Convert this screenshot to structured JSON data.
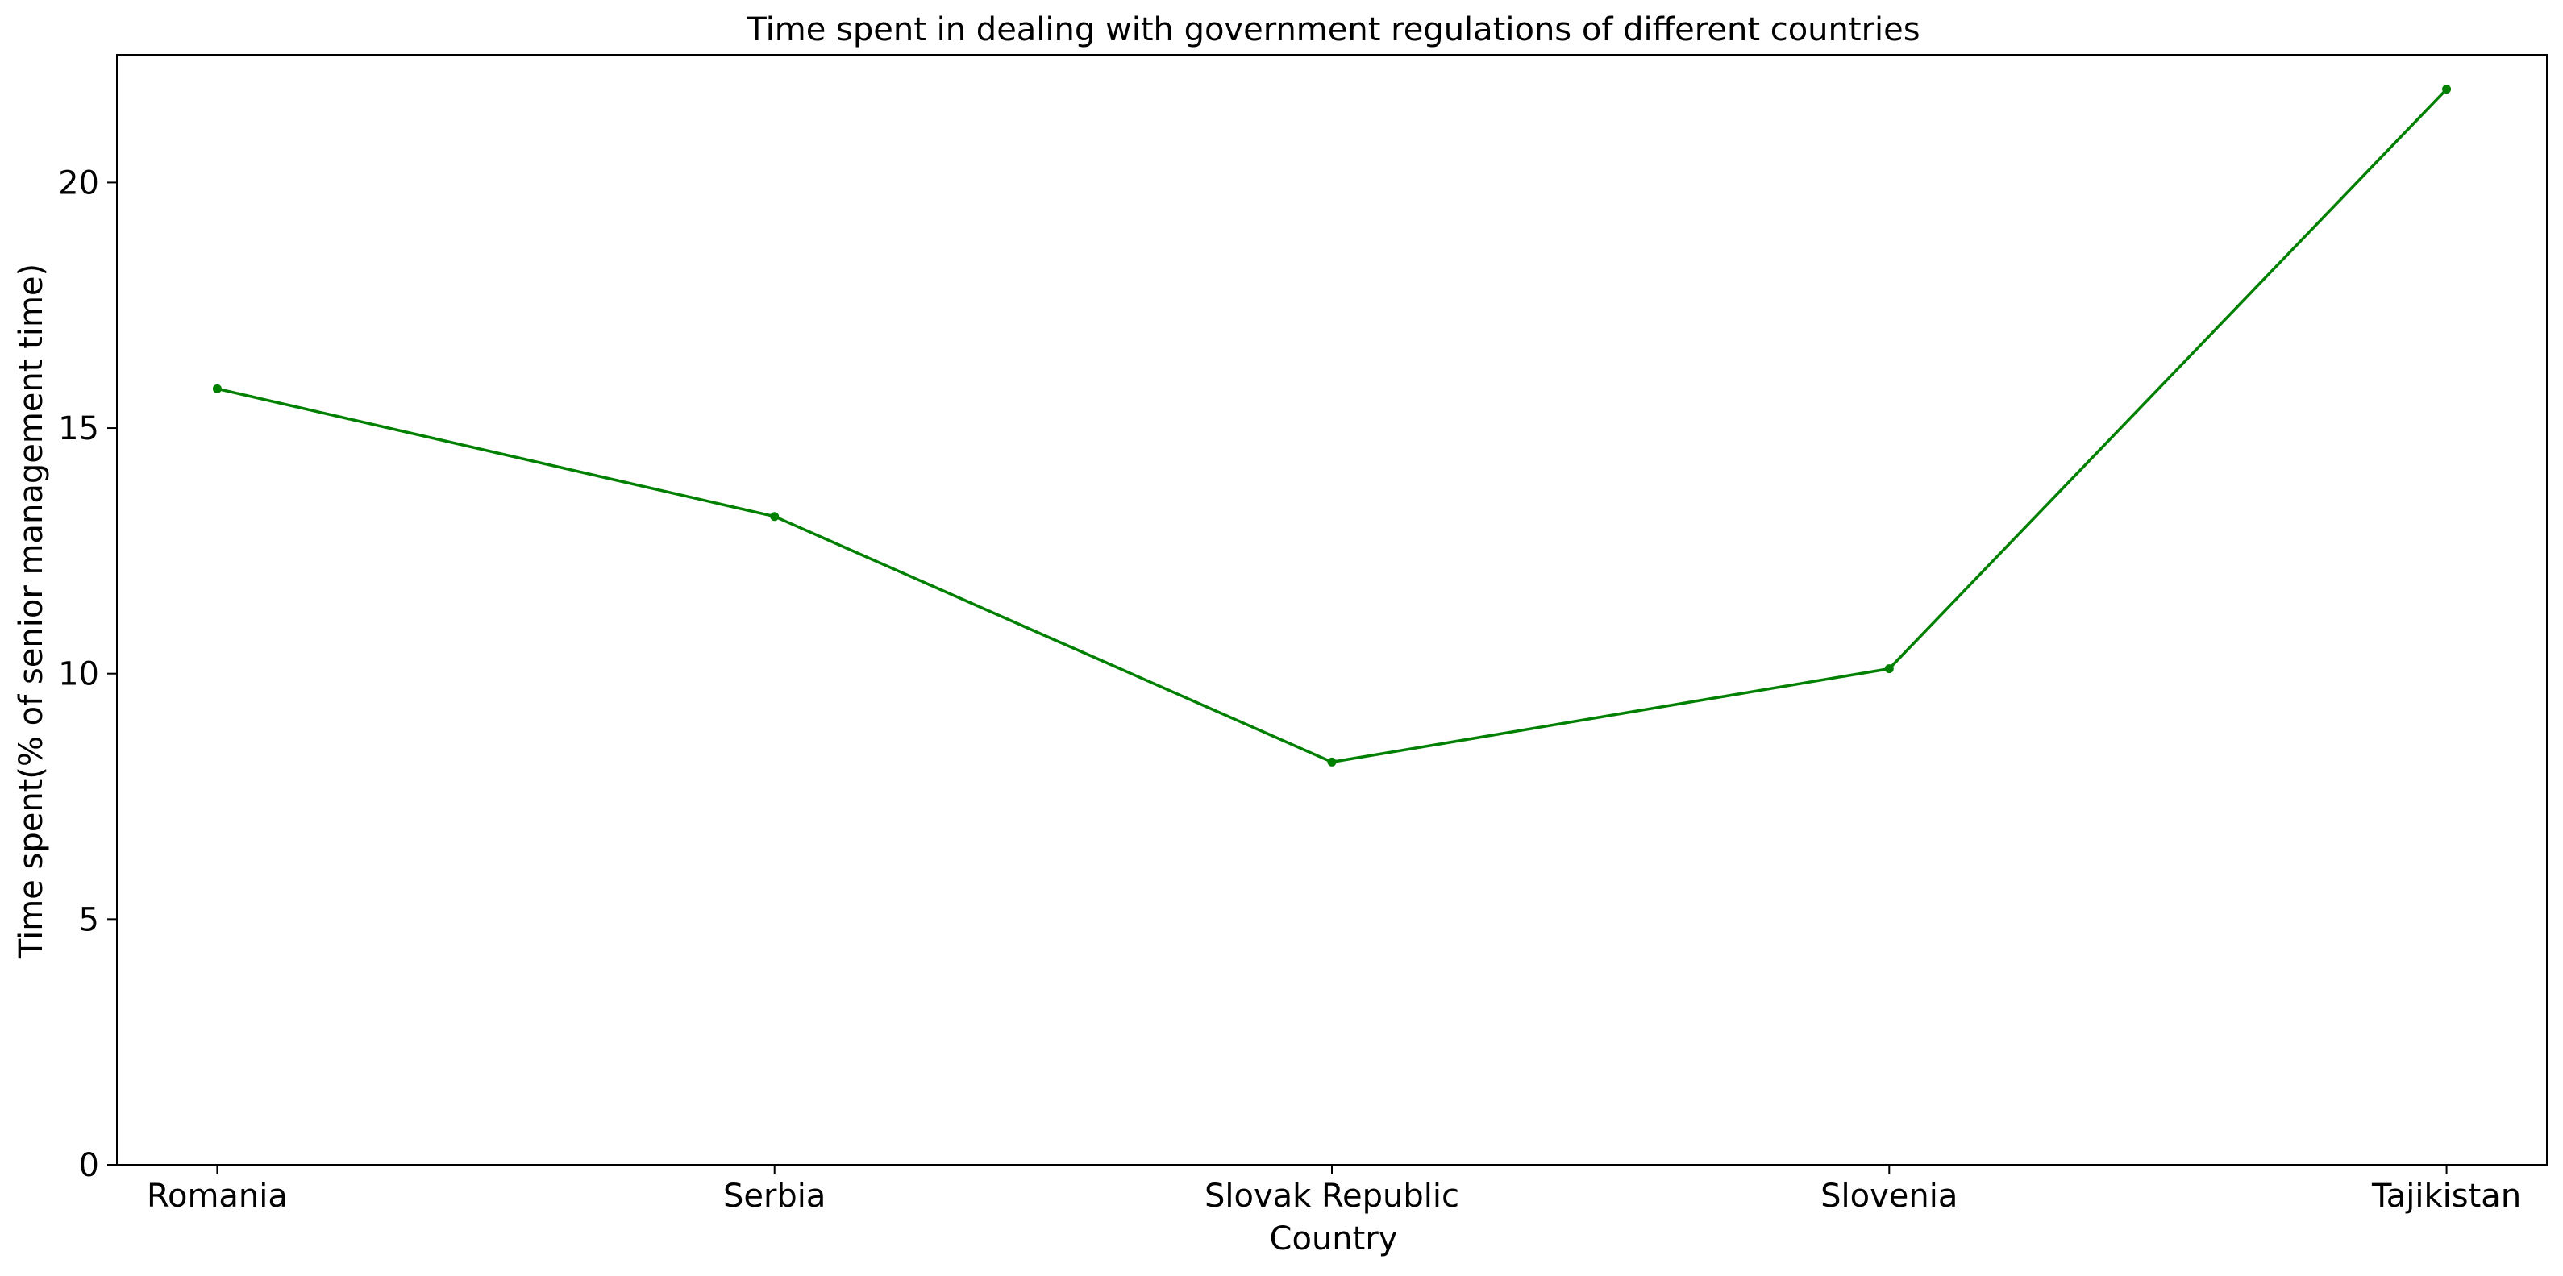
{
  "chart_data": {
    "type": "line",
    "title": "Time spent in dealing with government regulations of different countries",
    "xlabel": "Country",
    "ylabel": "Time spent(% of senior management time)",
    "categories": [
      "Romania",
      "Serbia",
      "Slovak Republic",
      "Slovenia",
      "Tajikistan"
    ],
    "series": [
      {
        "values": [
          15.8,
          13.2,
          8.2,
          10.1,
          21.9
        ],
        "color": "#008000",
        "marker": "circle"
      }
    ],
    "ylim": [
      0,
      22.6
    ],
    "yticks": [
      0,
      5,
      10,
      15,
      20
    ],
    "grid": false,
    "legend": "none"
  }
}
